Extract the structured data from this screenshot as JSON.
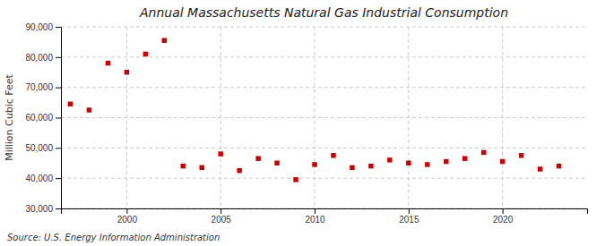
{
  "chart_data": {
    "type": "scatter",
    "title": "Annual Massachusetts Natural Gas Industrial Consumption",
    "ylabel": "Million Cubic Feet",
    "annotation": "Source: U.S. Energy Information Administration",
    "x": [
      1997,
      1998,
      1999,
      2000,
      2001,
      2002,
      2003,
      2004,
      2005,
      2006,
      2007,
      2008,
      2009,
      2010,
      2011,
      2012,
      2013,
      2014,
      2015,
      2016,
      2017,
      2018,
      2019,
      2020,
      2021,
      2022,
      2023
    ],
    "values": [
      64500,
      62500,
      78000,
      75000,
      81000,
      85500,
      44000,
      43500,
      48000,
      42500,
      46500,
      45000,
      39500,
      44500,
      47500,
      43500,
      44000,
      46000,
      45000,
      44500,
      45500,
      46500,
      48500,
      45500,
      47500,
      43000,
      44000
    ],
    "color": "#cc0000",
    "marker": "square",
    "grid": true,
    "xlim": [
      1996.5,
      2024.5
    ],
    "xticks": [
      2000,
      2005,
      2010,
      2015,
      2020
    ],
    "ylim": [
      30000,
      90000
    ],
    "yticks": [
      {
        "value": 30000,
        "label": "30,000"
      },
      {
        "value": 40000,
        "label": "40,000"
      },
      {
        "value": 50000,
        "label": "50,000"
      },
      {
        "value": 60000,
        "label": "60,000"
      },
      {
        "value": 70000,
        "label": "70,000"
      },
      {
        "value": 80000,
        "label": "80,000"
      },
      {
        "value": 90000,
        "label": "90,000"
      }
    ]
  }
}
